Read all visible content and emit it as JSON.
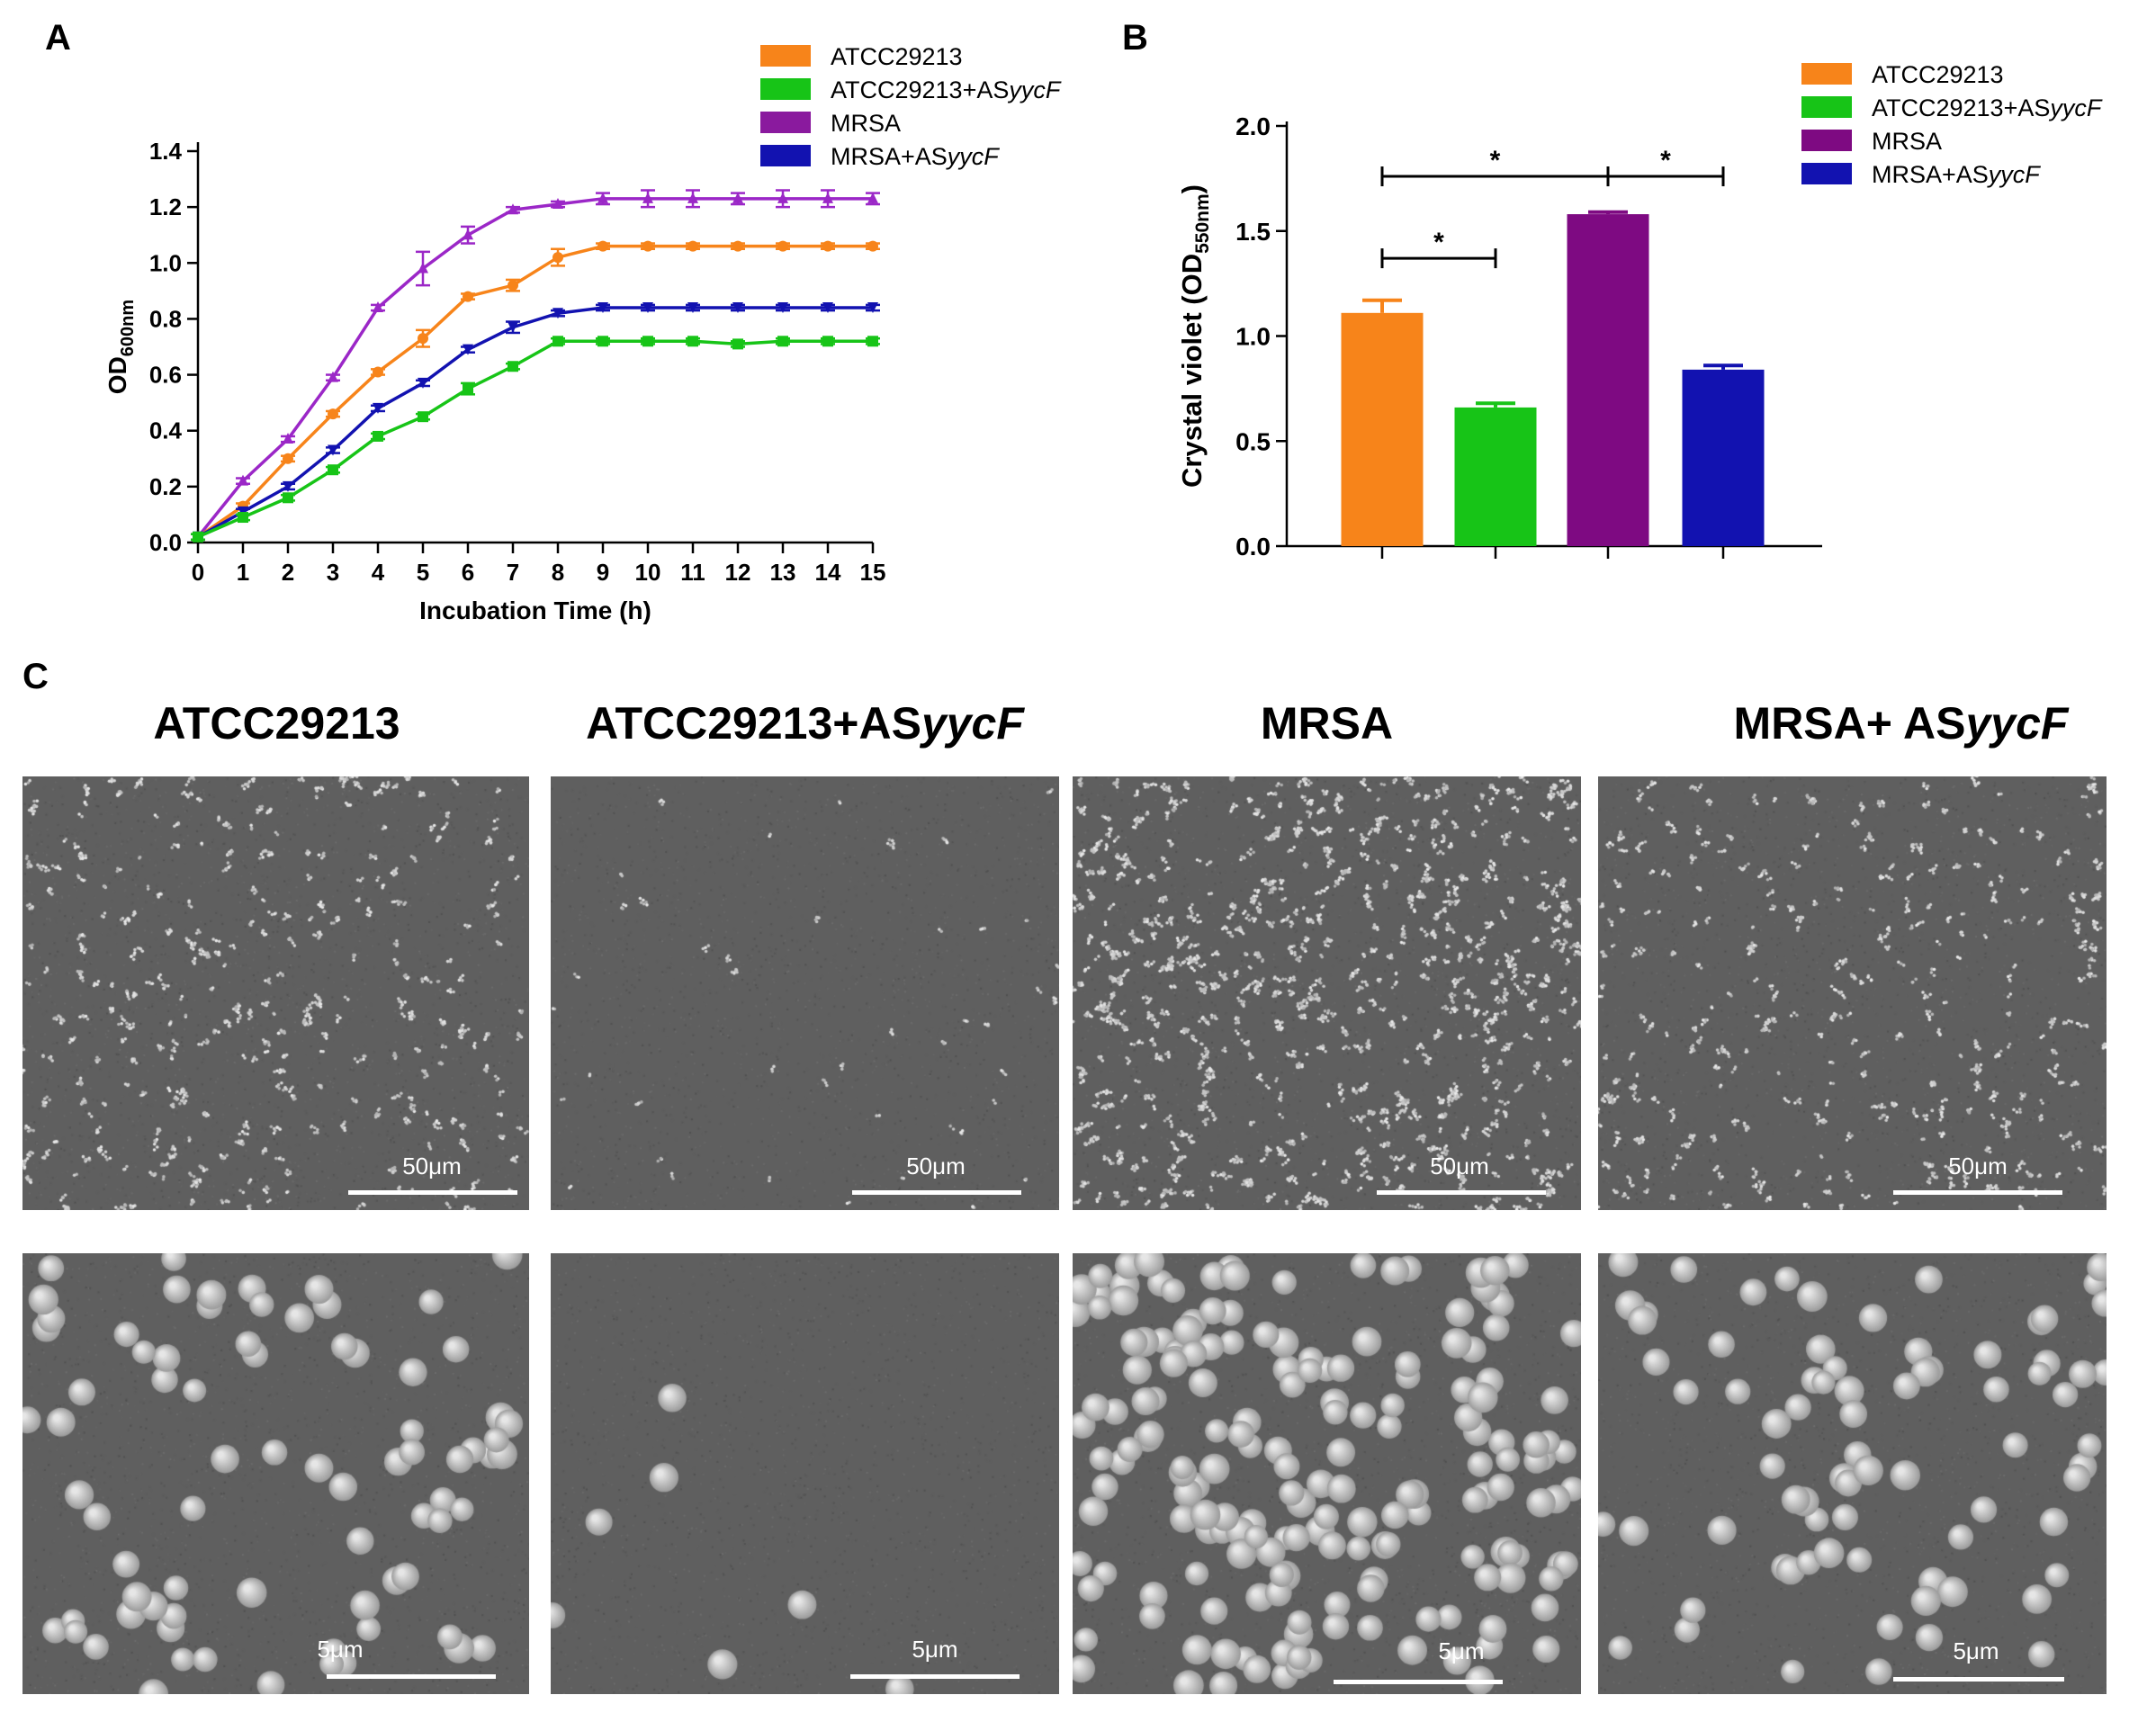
{
  "panels": {
    "a": "A",
    "b": "B",
    "c": "C"
  },
  "colors": {
    "atcc": "#f7841a",
    "atcc_as": "#17c417",
    "mrsa": "#9b27c7",
    "mrsa_bar": "#7e0a82",
    "mrsa_as": "#1212b0"
  },
  "chart_data": [
    {
      "type": "line",
      "ylabel_main": "OD",
      "ylabel_sub": "600nm",
      "xlabel": "Incubation Time (h)",
      "xlim": [
        0,
        15
      ],
      "ylim": [
        0,
        1.4
      ],
      "yticks": [
        0.0,
        0.2,
        0.4,
        0.6,
        0.8,
        1.0,
        1.2,
        1.4
      ],
      "ytick_labels": [
        "0.0",
        "0.2",
        "0.4",
        "0.6",
        "0.8",
        "1.0",
        "1.2",
        "1.4"
      ],
      "x": [
        0,
        1,
        2,
        3,
        4,
        5,
        6,
        7,
        8,
        9,
        10,
        11,
        12,
        13,
        14,
        15
      ],
      "xtick_labels": [
        "0",
        "1",
        "2",
        "3",
        "4",
        "5",
        "6",
        "7",
        "8",
        "9",
        "10",
        "11",
        "12",
        "13",
        "14",
        "15"
      ],
      "legend": [
        {
          "name": "ATCC29213",
          "italic": "",
          "color": "#f7841a"
        },
        {
          "name": "ATCC29213+AS",
          "italic": "yycF",
          "color": "#17c417"
        },
        {
          "name": "MRSA",
          "italic": "",
          "color": "#8a1a9e"
        },
        {
          "name": "MRSA+AS",
          "italic": "yycF",
          "color": "#1212b0"
        }
      ],
      "series": [
        {
          "values": [
            0.02,
            0.22,
            0.37,
            0.59,
            0.84,
            0.98,
            1.1,
            1.19,
            1.21,
            1.23,
            1.23,
            1.23,
            1.23,
            1.23,
            1.23,
            1.23
          ],
          "errors": [
            0.01,
            0.01,
            0.01,
            0.01,
            0.01,
            0.06,
            0.03,
            0.01,
            0.01,
            0.02,
            0.03,
            0.03,
            0.02,
            0.03,
            0.03,
            0.02
          ],
          "color": "#9b27c7",
          "marker": "triangle"
        },
        {
          "values": [
            0.02,
            0.13,
            0.3,
            0.46,
            0.61,
            0.73,
            0.88,
            0.92,
            1.02,
            1.06,
            1.06,
            1.06,
            1.06,
            1.06,
            1.06,
            1.06
          ],
          "errors": [
            0.01,
            0.01,
            0.01,
            0.01,
            0.01,
            0.03,
            0.01,
            0.02,
            0.03,
            0.01,
            0.01,
            0.01,
            0.01,
            0.01,
            0.01,
            0.01
          ],
          "color": "#f7841a",
          "marker": "circle"
        },
        {
          "values": [
            0.02,
            0.11,
            0.2,
            0.33,
            0.48,
            0.57,
            0.69,
            0.77,
            0.82,
            0.84,
            0.84,
            0.84,
            0.84,
            0.84,
            0.84,
            0.84
          ],
          "errors": [
            0.01,
            0.01,
            0.01,
            0.01,
            0.01,
            0.01,
            0.01,
            0.02,
            0.01,
            0.01,
            0.01,
            0.01,
            0.01,
            0.01,
            0.01,
            0.01
          ],
          "color": "#1212b0",
          "marker": "triangle-down"
        },
        {
          "values": [
            0.02,
            0.09,
            0.16,
            0.26,
            0.38,
            0.45,
            0.55,
            0.63,
            0.72,
            0.72,
            0.72,
            0.72,
            0.71,
            0.72,
            0.72,
            0.72
          ],
          "errors": [
            0.01,
            0.01,
            0.01,
            0.01,
            0.01,
            0.01,
            0.02,
            0.01,
            0.01,
            0.01,
            0.01,
            0.01,
            0.01,
            0.01,
            0.01,
            0.01
          ],
          "color": "#17c417",
          "marker": "square"
        }
      ]
    },
    {
      "type": "bar",
      "ylabel_main": "Crystal violet (OD",
      "ylabel_sub": "550nm",
      "ylabel_end": ")",
      "ylim": [
        0,
        2.0
      ],
      "yticks": [
        0.0,
        0.5,
        1.0,
        1.5,
        2.0
      ],
      "ytick_labels": [
        "0.0",
        "0.5",
        "1.0",
        "1.5",
        "2.0"
      ],
      "categories": [
        "ATCC29213",
        "ATCC29213+ASyycF",
        "MRSA",
        "MRSA+ASyycF"
      ],
      "values": [
        1.11,
        0.66,
        1.58,
        0.84
      ],
      "errors": [
        0.06,
        0.02,
        0.01,
        0.02
      ],
      "colors": [
        "#f7841a",
        "#17c417",
        "#7e0a82",
        "#1212b0"
      ],
      "legend": [
        {
          "name": "ATCC29213",
          "italic": "",
          "color": "#f7841a"
        },
        {
          "name": "ATCC29213+AS",
          "italic": "yycF",
          "color": "#17c417"
        },
        {
          "name": "MRSA",
          "italic": "",
          "color": "#7e0a82"
        },
        {
          "name": "MRSA+AS",
          "italic": "yycF",
          "color": "#1212b0"
        }
      ],
      "significance": [
        {
          "from": 0,
          "to": 2,
          "label": "*",
          "y": 1.76
        },
        {
          "from": 0,
          "to": 1,
          "label": "*",
          "y": 1.37
        },
        {
          "from": 2,
          "to": 3,
          "label": "*",
          "y": 1.76
        }
      ]
    }
  ],
  "sem": {
    "titles": [
      {
        "text": "ATCC29213",
        "italic": ""
      },
      {
        "text": "ATCC29213+AS",
        "italic": "yycF"
      },
      {
        "text": "MRSA",
        "italic": ""
      },
      {
        "text": "MRSA+ AS",
        "italic": "yycF"
      }
    ],
    "scale_top": "50μm",
    "scale_bottom": "5μm",
    "density_top": [
      0.35,
      0.05,
      0.65,
      0.35
    ],
    "density_bottom": [
      0.3,
      0.03,
      0.7,
      0.3
    ]
  }
}
